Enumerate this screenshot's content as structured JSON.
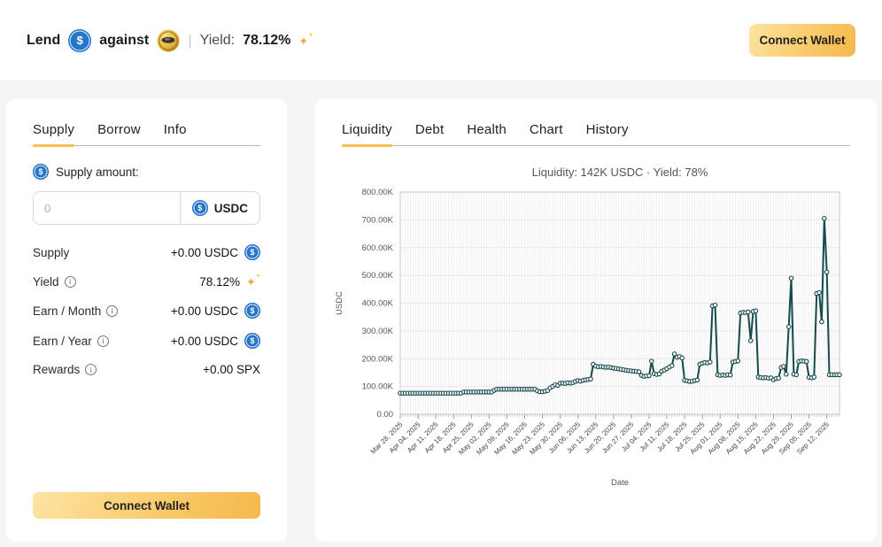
{
  "colors": {
    "accent_yellow": "#f8c050",
    "button_gradient": [
      "#fde4a2",
      "#f5b84e"
    ],
    "usdc_blue": "#2775ca",
    "line_teal": "#164a4c",
    "page_bg": "#f4f5f7",
    "panel_bg": "#ffffff"
  },
  "icons": {
    "usdc_symbol": "$",
    "sparkle_main": "✦",
    "sparkle_small": "✦",
    "info": "i"
  },
  "header": {
    "lend_label": "Lend",
    "against_label": "against",
    "separator": "|",
    "yield_label": "Yield:",
    "yield_value": "78.12%",
    "connect_wallet_label": "Connect Wallet"
  },
  "supply_panel": {
    "tabs": [
      {
        "label": "Supply",
        "active": true
      },
      {
        "label": "Borrow",
        "active": false
      },
      {
        "label": "Info",
        "active": false
      }
    ],
    "amount_label": "Supply amount:",
    "input": {
      "value": "",
      "placeholder": "0",
      "currency": "USDC"
    },
    "rows": [
      {
        "label": "Supply",
        "info": false,
        "value": "+0.00 USDC",
        "icon": "usdc-icon"
      },
      {
        "label": "Yield",
        "info": true,
        "value": "78.12%",
        "icon": "sparkles-icon"
      },
      {
        "label": "Earn / Month",
        "info": true,
        "value": "+0.00 USDC",
        "icon": "usdc-icon"
      },
      {
        "label": "Earn / Year",
        "info": true,
        "value": "+0.00 USDC",
        "icon": "usdc-icon"
      },
      {
        "label": "Rewards",
        "info": true,
        "value": "+0.00 SPX",
        "icon": null
      }
    ],
    "connect_wallet_label": "Connect Wallet"
  },
  "chart_panel": {
    "tabs": [
      {
        "label": "Liquidity",
        "active": true
      },
      {
        "label": "Debt",
        "active": false
      },
      {
        "label": "Health",
        "active": false
      },
      {
        "label": "Chart",
        "active": false
      },
      {
        "label": "History",
        "active": false
      }
    ],
    "title": "Liquidity: 142K USDC · Yield: 78%"
  },
  "chart_data": {
    "type": "line",
    "title": "Liquidity: 142K USDC · Yield: 78%",
    "xlabel": "Date",
    "ylabel": "USDC",
    "values_unit": "thousand USDC (daily liquidity)",
    "ylim_k": [
      0,
      800
    ],
    "y_tick_labels": [
      "0.00",
      "100.00K",
      "200.00K",
      "300.00K",
      "400.00K",
      "500.00K",
      "600.00K",
      "700.00K",
      "800.00K"
    ],
    "x_start_date": "Mar 28, 2025",
    "x_tick_every_days": 7,
    "x_tick_labels": [
      "Mar 28, 2025",
      "Apr 04, 2025",
      "Apr 11, 2025",
      "Apr 18, 2025",
      "Apr 25, 2025",
      "May 02, 2025",
      "May 09, 2025",
      "May 16, 2025",
      "May 23, 2025",
      "May 30, 2025",
      "Jun 06, 2025",
      "Jun 13, 2025",
      "Jun 20, 2025",
      "Jun 27, 2025",
      "Jul 04, 2025",
      "Jul 11, 2025",
      "Jul 18, 2025",
      "Jul 25, 2025",
      "Aug 01, 2025",
      "Aug 08, 2025",
      "Aug 15, 2025",
      "Aug 22, 2025",
      "Aug 29, 2025",
      "Sep 05, 2025",
      "Sep 12, 2025"
    ],
    "grid": true,
    "legend": false,
    "marker": "circle-open",
    "line_color": "#164a4c",
    "values_k": [
      76,
      76,
      76,
      76,
      76,
      76,
      76,
      76,
      76,
      76,
      76,
      76,
      76,
      76,
      76,
      76,
      76,
      76,
      76,
      76,
      76,
      76,
      76,
      76,
      76,
      80,
      80,
      80,
      80,
      80,
      80,
      80,
      80,
      80,
      80,
      80,
      80,
      86,
      90,
      90,
      90,
      90,
      90,
      90,
      90,
      90,
      90,
      90,
      90,
      90,
      90,
      90,
      90,
      90,
      84,
      81,
      81,
      83,
      85,
      95,
      100,
      106,
      104,
      112,
      112,
      111,
      113,
      112,
      114,
      118,
      121,
      119,
      122,
      124,
      125,
      127,
      180,
      173,
      171,
      172,
      170,
      169,
      170,
      168,
      166,
      165,
      163,
      162,
      160,
      158,
      157,
      156,
      155,
      154,
      153,
      140,
      136,
      138,
      139,
      191,
      146,
      143,
      145,
      155,
      159,
      164,
      170,
      175,
      217,
      205,
      208,
      203,
      122,
      120,
      118,
      119,
      121,
      123,
      180,
      184,
      186,
      185,
      188,
      390,
      393,
      142,
      140,
      141,
      140,
      142,
      141,
      188,
      190,
      192,
      365,
      367,
      366,
      368,
      265,
      370,
      372,
      134,
      132,
      131,
      132,
      130,
      131,
      124,
      128,
      130,
      168,
      172,
      144,
      315,
      490,
      144,
      142,
      190,
      192,
      191,
      190,
      133,
      131,
      134,
      435,
      438,
      333,
      705,
      512,
      142,
      142,
      142,
      142,
      142
    ]
  }
}
